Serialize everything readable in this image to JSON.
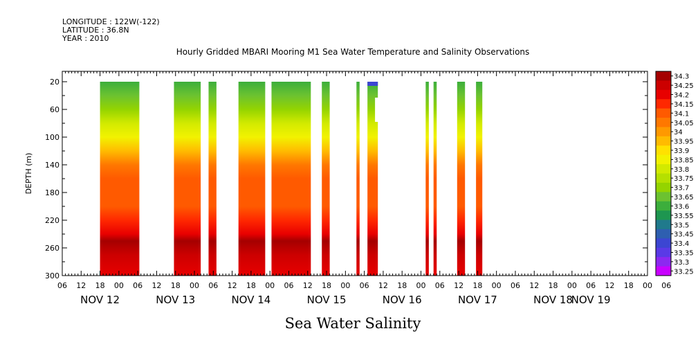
{
  "header": {
    "longitude": "LONGITUDE : 122W(-122)",
    "latitude": "LATITUDE : 36.8N",
    "year": "YEAR : 2010"
  },
  "chart_data": {
    "type": "heatmap",
    "title": "Hourly Gridded MBARI Mooring M1 Sea Water Temperature and Salinity Observations",
    "xlabel": "Sea Water Salinity",
    "ylabel": "DEPTH (m)",
    "x_range_hours": [
      0,
      186
    ],
    "x_origin": "NOV 12 06",
    "hour_ticks": [
      "06",
      "12",
      "18",
      "00",
      "06",
      "12",
      "18",
      "00",
      "06",
      "12",
      "18",
      "00",
      "06",
      "12",
      "18",
      "00",
      "06",
      "12",
      "18",
      "00",
      "06",
      "12",
      "18",
      "00",
      "06",
      "12",
      "18",
      "00",
      "06",
      "12",
      "18",
      "00",
      "06"
    ],
    "day_labels": [
      "NOV 12",
      "NOV 13",
      "NOV 14",
      "NOV 15",
      "NOV 16",
      "NOV 17",
      "NOV 18",
      "NOV 19"
    ],
    "day_label_hours": [
      12,
      36,
      60,
      84,
      108,
      132,
      156,
      168
    ],
    "ylim": [
      300,
      5
    ],
    "y_ticks": [
      20,
      60,
      100,
      140,
      180,
      220,
      260,
      300
    ],
    "data_depth_range": [
      20,
      300
    ],
    "colorbar_levels": [
      "34.3",
      "34.25",
      "34.2",
      "34.15",
      "34.1",
      "34.05",
      "34",
      "33.95",
      "33.9",
      "33.85",
      "33.8",
      "33.75",
      "33.7",
      "33.65",
      "33.6",
      "33.55",
      "33.5",
      "33.45",
      "33.4",
      "33.35",
      "33.3",
      "33.25"
    ],
    "colorbar_colors": [
      "#a50000",
      "#cc0000",
      "#e80000",
      "#ff2800",
      "#ff5a00",
      "#ff7800",
      "#ff9900",
      "#ffbb00",
      "#ffe100",
      "#f2f200",
      "#d2ea00",
      "#b5e000",
      "#94d400",
      "#6cc230",
      "#3cae3c",
      "#1e9650",
      "#207a8c",
      "#2e5fb0",
      "#3c46d2",
      "#5a3ae6",
      "#8c28f0",
      "#c800ff"
    ],
    "profile_typical": [
      {
        "depth": 20,
        "salinity": 33.58
      },
      {
        "depth": 40,
        "salinity": 33.63
      },
      {
        "depth": 60,
        "salinity": 33.7
      },
      {
        "depth": 80,
        "salinity": 33.78
      },
      {
        "depth": 100,
        "salinity": 33.85
      },
      {
        "depth": 120,
        "salinity": 33.95
      },
      {
        "depth": 140,
        "salinity": 34.05
      },
      {
        "depth": 160,
        "salinity": 34.1
      },
      {
        "depth": 200,
        "salinity": 34.1
      },
      {
        "depth": 220,
        "salinity": 34.15
      },
      {
        "depth": 240,
        "salinity": 34.2
      },
      {
        "depth": 250,
        "salinity": 34.28
      },
      {
        "depth": 270,
        "salinity": 34.25
      },
      {
        "depth": 300,
        "salinity": 34.18
      }
    ],
    "data_segments": [
      {
        "start_hour": 12,
        "end_hour": 24.5,
        "profile": "typical"
      },
      {
        "start_hour": 35.5,
        "end_hour": 44,
        "profile": "typical"
      },
      {
        "start_hour": 46.5,
        "end_hour": 49,
        "profile": "typical"
      },
      {
        "start_hour": 56,
        "end_hour": 64.5,
        "profile": "typical"
      },
      {
        "start_hour": 66.5,
        "end_hour": 79,
        "profile": "typical"
      },
      {
        "start_hour": 82.5,
        "end_hour": 85,
        "profile": "typical"
      },
      {
        "start_hour": 93.5,
        "end_hour": 94.5,
        "profile": "typical"
      },
      {
        "start_hour": 97,
        "end_hour": 100.3,
        "profile": "upper-gap"
      },
      {
        "start_hour": 115.5,
        "end_hour": 116.5,
        "profile": "typical"
      },
      {
        "start_hour": 118,
        "end_hour": 119,
        "profile": "typical"
      },
      {
        "start_hour": 125.5,
        "end_hour": 128,
        "profile": "typical"
      },
      {
        "start_hour": 131.5,
        "end_hour": 133.5,
        "profile": "typical"
      }
    ]
  }
}
